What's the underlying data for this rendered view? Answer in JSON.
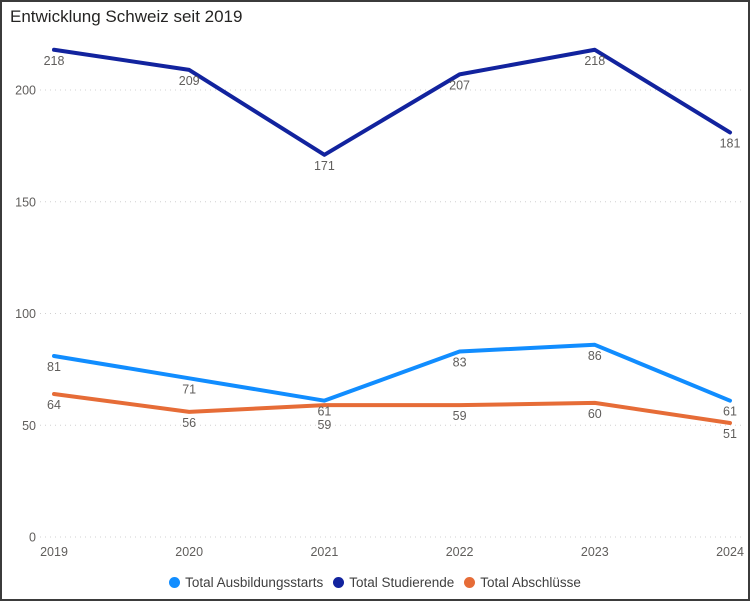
{
  "chart_data": {
    "type": "line",
    "title": "Entwicklung Schweiz seit 2019",
    "x": [
      "2019",
      "2020",
      "2021",
      "2022",
      "2023",
      "2024"
    ],
    "series": [
      {
        "name": "Total Ausbildungsstarts",
        "color": "#118DFF",
        "values": [
          81,
          71,
          61,
          83,
          86,
          61
        ]
      },
      {
        "name": "Total Studierende",
        "color": "#12239E",
        "values": [
          218,
          209,
          171,
          207,
          218,
          181
        ]
      },
      {
        "name": "Total Abschlüsse",
        "color": "#E66C37",
        "values": [
          64,
          56,
          59,
          59,
          60,
          51
        ]
      }
    ],
    "y_ticks": [
      0,
      50,
      100,
      150,
      200
    ],
    "ylim": [
      0,
      225
    ],
    "xlabel": "",
    "ylabel": "",
    "grid": "horizontal-dotted",
    "legend_position": "bottom",
    "data_labels": true
  },
  "styles": {
    "background": "#FFFFFF",
    "border_color": "#3B3B3B",
    "title_color": "#252423",
    "tick_label_color": "#605E5C",
    "data_label_color": "#605E5C",
    "legend_text_color": "#404040",
    "gridline_color": "#D0D0D0"
  }
}
